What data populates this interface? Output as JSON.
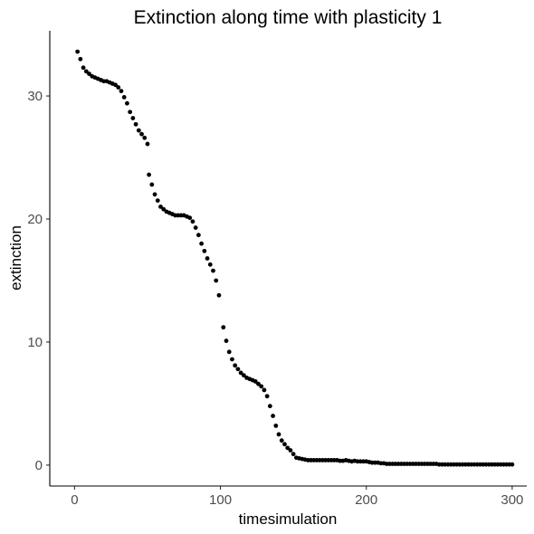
{
  "chart_data": {
    "type": "scatter",
    "title": "Extinction along time with plasticity 1",
    "xlabel": "timesimulation",
    "ylabel": "extinction",
    "xlim": [
      -17,
      310
    ],
    "ylim": [
      -1.7,
      35.3
    ],
    "xticks": [
      0,
      100,
      200,
      300
    ],
    "yticks": [
      0,
      10,
      20,
      30
    ],
    "grid": false,
    "legend": "none",
    "point_color": "#000000",
    "points": [
      [
        2,
        33.6
      ],
      [
        4,
        33.0
      ],
      [
        6,
        32.3
      ],
      [
        8,
        32.0
      ],
      [
        10,
        31.8
      ],
      [
        12,
        31.6
      ],
      [
        14,
        31.5
      ],
      [
        16,
        31.4
      ],
      [
        18,
        31.3
      ],
      [
        20,
        31.2
      ],
      [
        22,
        31.2
      ],
      [
        24,
        31.1
      ],
      [
        26,
        31.0
      ],
      [
        28,
        30.9
      ],
      [
        30,
        30.7
      ],
      [
        32,
        30.4
      ],
      [
        34,
        29.9
      ],
      [
        36,
        29.4
      ],
      [
        38,
        28.7
      ],
      [
        40,
        28.2
      ],
      [
        42,
        27.7
      ],
      [
        44,
        27.2
      ],
      [
        46,
        26.9
      ],
      [
        48,
        26.6
      ],
      [
        50,
        26.1
      ],
      [
        51,
        23.6
      ],
      [
        53,
        22.8
      ],
      [
        55,
        22.0
      ],
      [
        57,
        21.5
      ],
      [
        59,
        21.0
      ],
      [
        61,
        20.8
      ],
      [
        63,
        20.6
      ],
      [
        65,
        20.5
      ],
      [
        67,
        20.4
      ],
      [
        69,
        20.3
      ],
      [
        71,
        20.3
      ],
      [
        73,
        20.3
      ],
      [
        75,
        20.3
      ],
      [
        77,
        20.2
      ],
      [
        79,
        20.1
      ],
      [
        81,
        19.8
      ],
      [
        83,
        19.3
      ],
      [
        85,
        18.7
      ],
      [
        87,
        18.0
      ],
      [
        89,
        17.4
      ],
      [
        91,
        16.8
      ],
      [
        93,
        16.3
      ],
      [
        95,
        15.8
      ],
      [
        97,
        15.0
      ],
      [
        99,
        13.8
      ],
      [
        102,
        11.2
      ],
      [
        104,
        10.1
      ],
      [
        106,
        9.2
      ],
      [
        108,
        8.6
      ],
      [
        110,
        8.1
      ],
      [
        112,
        7.8
      ],
      [
        114,
        7.5
      ],
      [
        116,
        7.3
      ],
      [
        118,
        7.1
      ],
      [
        120,
        7.0
      ],
      [
        122,
        6.9
      ],
      [
        124,
        6.8
      ],
      [
        126,
        6.6
      ],
      [
        128,
        6.4
      ],
      [
        130,
        6.1
      ],
      [
        132,
        5.6
      ],
      [
        134,
        4.8
      ],
      [
        136,
        4.0
      ],
      [
        138,
        3.2
      ],
      [
        140,
        2.5
      ],
      [
        142,
        2.0
      ],
      [
        144,
        1.7
      ],
      [
        146,
        1.4
      ],
      [
        148,
        1.2
      ],
      [
        150,
        0.9
      ],
      [
        152,
        0.6
      ],
      [
        154,
        0.55
      ],
      [
        156,
        0.5
      ],
      [
        158,
        0.45
      ],
      [
        160,
        0.4
      ],
      [
        162,
        0.4
      ],
      [
        164,
        0.4
      ],
      [
        166,
        0.4
      ],
      [
        168,
        0.4
      ],
      [
        170,
        0.4
      ],
      [
        172,
        0.4
      ],
      [
        174,
        0.4
      ],
      [
        176,
        0.4
      ],
      [
        178,
        0.4
      ],
      [
        180,
        0.4
      ],
      [
        182,
        0.35
      ],
      [
        184,
        0.35
      ],
      [
        186,
        0.4
      ],
      [
        188,
        0.35
      ],
      [
        190,
        0.3
      ],
      [
        192,
        0.35
      ],
      [
        194,
        0.3
      ],
      [
        196,
        0.3
      ],
      [
        198,
        0.3
      ],
      [
        200,
        0.3
      ],
      [
        202,
        0.25
      ],
      [
        204,
        0.2
      ],
      [
        206,
        0.2
      ],
      [
        208,
        0.2
      ],
      [
        210,
        0.15
      ],
      [
        212,
        0.15
      ],
      [
        214,
        0.1
      ],
      [
        216,
        0.1
      ],
      [
        218,
        0.1
      ],
      [
        220,
        0.1
      ],
      [
        222,
        0.1
      ],
      [
        224,
        0.1
      ],
      [
        226,
        0.1
      ],
      [
        228,
        0.1
      ],
      [
        230,
        0.1
      ],
      [
        232,
        0.1
      ],
      [
        234,
        0.1
      ],
      [
        236,
        0.1
      ],
      [
        238,
        0.1
      ],
      [
        240,
        0.1
      ],
      [
        242,
        0.1
      ],
      [
        244,
        0.1
      ],
      [
        246,
        0.1
      ],
      [
        248,
        0.1
      ],
      [
        250,
        0.05
      ],
      [
        252,
        0.05
      ],
      [
        254,
        0.05
      ],
      [
        256,
        0.05
      ],
      [
        258,
        0.05
      ],
      [
        260,
        0.05
      ],
      [
        262,
        0.05
      ],
      [
        264,
        0.05
      ],
      [
        266,
        0.05
      ],
      [
        268,
        0.05
      ],
      [
        270,
        0.05
      ],
      [
        272,
        0.05
      ],
      [
        274,
        0.05
      ],
      [
        276,
        0.05
      ],
      [
        278,
        0.05
      ],
      [
        280,
        0.05
      ],
      [
        282,
        0.05
      ],
      [
        284,
        0.05
      ],
      [
        286,
        0.05
      ],
      [
        288,
        0.05
      ],
      [
        290,
        0.05
      ],
      [
        292,
        0.05
      ],
      [
        294,
        0.05
      ],
      [
        296,
        0.05
      ],
      [
        298,
        0.05
      ],
      [
        300,
        0.05
      ]
    ]
  }
}
